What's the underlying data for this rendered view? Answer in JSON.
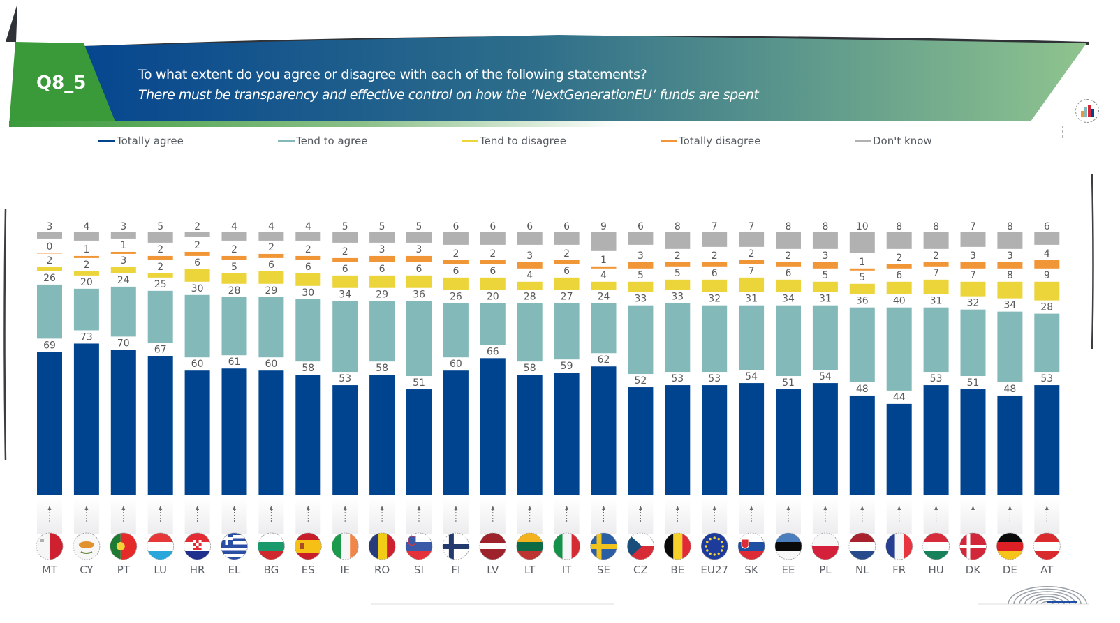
{
  "header": {
    "question_code": "Q8_5",
    "question": "To what extent do you agree or disagree with each of the following statements?",
    "statement": "There must be transparency and effective control on how the ‘NextGenerationEU’ funds are spent",
    "chart_icon": "bar-chart-icon",
    "logo_icon": "parliament-hemicycle-icon"
  },
  "colors": {
    "totally_agree": "#00448f",
    "tend_to_agree": "#84b9b9",
    "tend_to_disagree": "#ecd43b",
    "totally_disagree": "#f19637",
    "dont_know": "#b1b1b1",
    "banner_green": "#3a9a3a",
    "banner_blue": "#0a468f"
  },
  "legend": [
    {
      "key": "totally_agree",
      "label": "Totally agree"
    },
    {
      "key": "tend_to_agree",
      "label": "Tend to agree"
    },
    {
      "key": "tend_to_disagree",
      "label": "Tend to disagree"
    },
    {
      "key": "totally_disagree",
      "label": "Totally disagree"
    },
    {
      "key": "dont_know",
      "label": "Don't know"
    }
  ],
  "chart_data": {
    "type": "bar",
    "title": "There must be transparency and effective control on how the ‘NextGenerationEU’ funds are spent",
    "xlabel": "",
    "ylabel": "%",
    "ylim": [
      0,
      100
    ],
    "grid": false,
    "legend_position": "top",
    "categories": [
      "MT",
      "CY",
      "PT",
      "LU",
      "HR",
      "EL",
      "BG",
      "ES",
      "IE",
      "RO",
      "SI",
      "FI",
      "LV",
      "LT",
      "IT",
      "SE",
      "CZ",
      "BE",
      "EU27",
      "SK",
      "EE",
      "PL",
      "NL",
      "FR",
      "HU",
      "DK",
      "DE",
      "AT"
    ],
    "series": [
      {
        "name": "Totally agree",
        "key": "totally_agree",
        "values": [
          69,
          73,
          70,
          67,
          60,
          61,
          60,
          58,
          53,
          58,
          51,
          60,
          66,
          58,
          59,
          62,
          52,
          53,
          53,
          54,
          51,
          54,
          48,
          44,
          53,
          51,
          48,
          53
        ]
      },
      {
        "name": "Tend to agree",
        "key": "tend_to_agree",
        "values": [
          26,
          20,
          24,
          25,
          30,
          28,
          29,
          30,
          34,
          29,
          36,
          26,
          20,
          28,
          27,
          24,
          33,
          33,
          32,
          31,
          34,
          31,
          36,
          40,
          31,
          32,
          34,
          28
        ]
      },
      {
        "name": "Tend to disagree",
        "key": "tend_to_disagree",
        "values": [
          2,
          2,
          3,
          2,
          6,
          5,
          6,
          6,
          6,
          6,
          6,
          6,
          6,
          4,
          6,
          4,
          5,
          5,
          6,
          7,
          6,
          5,
          5,
          6,
          7,
          7,
          8,
          9
        ]
      },
      {
        "name": "Totally disagree",
        "key": "totally_disagree",
        "values": [
          0,
          1,
          1,
          2,
          2,
          2,
          2,
          2,
          2,
          3,
          3,
          2,
          2,
          3,
          2,
          1,
          3,
          2,
          2,
          2,
          2,
          3,
          1,
          2,
          2,
          3,
          3,
          4
        ]
      },
      {
        "name": "Don't know",
        "key": "dont_know",
        "values": [
          3,
          4,
          3,
          5,
          2,
          4,
          4,
          4,
          5,
          5,
          5,
          6,
          6,
          6,
          6,
          9,
          6,
          8,
          7,
          7,
          8,
          8,
          10,
          8,
          8,
          7,
          8,
          6
        ]
      }
    ],
    "flags": [
      "malta",
      "cyprus",
      "portugal",
      "luxembourg",
      "croatia",
      "greece",
      "bulgaria",
      "spain",
      "ireland",
      "romania",
      "slovenia",
      "finland",
      "latvia",
      "lithuania",
      "italy",
      "sweden",
      "czechia",
      "belgium",
      "eu",
      "slovakia",
      "estonia",
      "poland",
      "netherlands",
      "france",
      "hungary",
      "denmark",
      "germany",
      "austria"
    ]
  }
}
